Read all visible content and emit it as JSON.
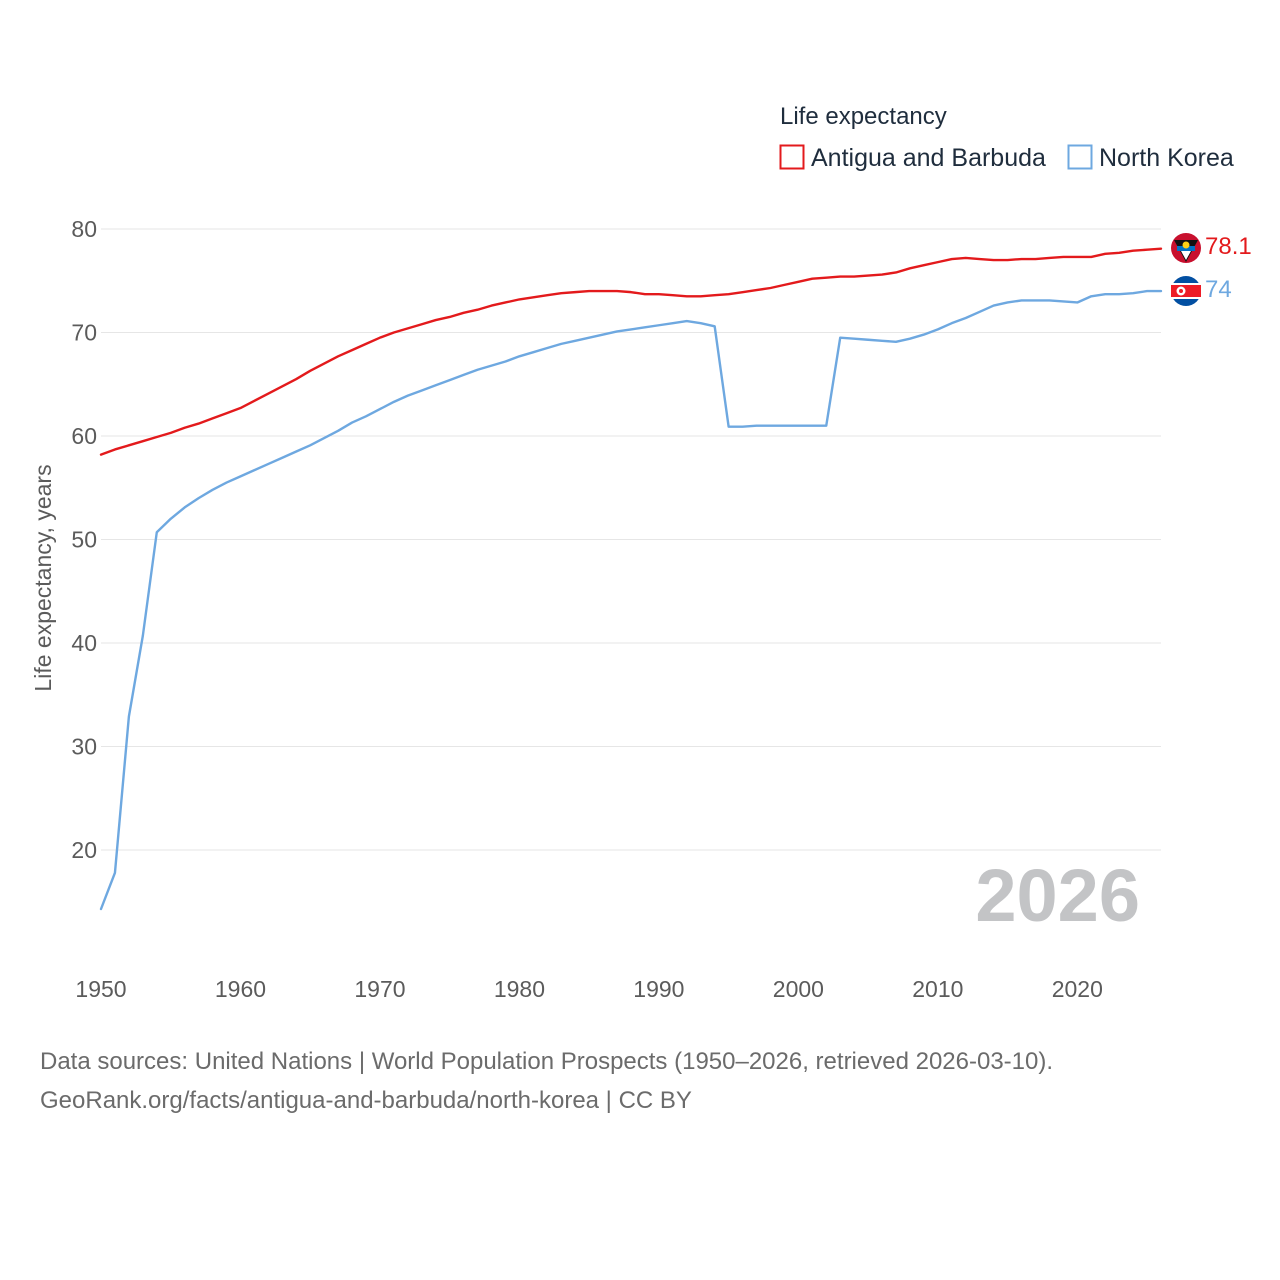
{
  "chart_data": {
    "type": "line",
    "title": "Life expectancy",
    "xlabel": "",
    "ylabel": "Life expectancy, years",
    "xlim": [
      1950,
      2026
    ],
    "ylim": [
      10,
      85
    ],
    "x_ticks": [
      1950,
      1960,
      1970,
      1980,
      1990,
      2000,
      2010,
      2020
    ],
    "y_ticks": [
      20,
      30,
      40,
      50,
      60,
      70,
      80
    ],
    "grid": true,
    "legend_position": "top-right",
    "current_year_label": "2026",
    "series": [
      {
        "name": "Antigua and Barbuda",
        "color": "#e31a1c",
        "flag_icon": "antigua-and-barbuda-flag-icon",
        "end_label": "78.1",
        "x": [
          1950,
          1951,
          1952,
          1953,
          1954,
          1955,
          1956,
          1957,
          1958,
          1959,
          1960,
          1961,
          1962,
          1963,
          1964,
          1965,
          1966,
          1967,
          1968,
          1969,
          1970,
          1971,
          1972,
          1973,
          1974,
          1975,
          1976,
          1977,
          1978,
          1979,
          1980,
          1981,
          1982,
          1983,
          1984,
          1985,
          1986,
          1987,
          1988,
          1989,
          1990,
          1991,
          1992,
          1993,
          1994,
          1995,
          1996,
          1997,
          1998,
          1999,
          2000,
          2001,
          2002,
          2003,
          2004,
          2005,
          2006,
          2007,
          2008,
          2009,
          2010,
          2011,
          2012,
          2013,
          2014,
          2015,
          2016,
          2017,
          2018,
          2019,
          2020,
          2021,
          2022,
          2023,
          2024,
          2025,
          2026
        ],
        "values": [
          58.2,
          58.7,
          59.1,
          59.5,
          59.9,
          60.3,
          60.8,
          61.2,
          61.7,
          62.2,
          62.7,
          63.4,
          64.1,
          64.8,
          65.5,
          66.3,
          67.0,
          67.7,
          68.3,
          68.9,
          69.5,
          70.0,
          70.4,
          70.8,
          71.2,
          71.5,
          71.9,
          72.2,
          72.6,
          72.9,
          73.2,
          73.4,
          73.6,
          73.8,
          73.9,
          74.0,
          74.0,
          74.0,
          73.9,
          73.7,
          73.7,
          73.6,
          73.5,
          73.5,
          73.6,
          73.7,
          73.9,
          74.1,
          74.3,
          74.6,
          74.9,
          75.2,
          75.3,
          75.4,
          75.4,
          75.5,
          75.6,
          75.8,
          76.2,
          76.5,
          76.8,
          77.1,
          77.2,
          77.1,
          77.0,
          77.0,
          77.1,
          77.1,
          77.2,
          77.3,
          77.3,
          77.3,
          77.6,
          77.7,
          77.9,
          78.0,
          78.1
        ]
      },
      {
        "name": "North Korea",
        "color": "#6ea8e0",
        "flag_icon": "north-korea-flag-icon",
        "end_label": "74",
        "x": [
          1950,
          1951,
          1952,
          1953,
          1954,
          1955,
          1956,
          1957,
          1958,
          1959,
          1960,
          1961,
          1962,
          1963,
          1964,
          1965,
          1966,
          1967,
          1968,
          1969,
          1970,
          1971,
          1972,
          1973,
          1974,
          1975,
          1976,
          1977,
          1978,
          1979,
          1980,
          1981,
          1982,
          1983,
          1984,
          1985,
          1986,
          1987,
          1988,
          1989,
          1990,
          1991,
          1992,
          1993,
          1994,
          1995,
          1996,
          1997,
          1998,
          1999,
          2000,
          2001,
          2002,
          2003,
          2004,
          2005,
          2006,
          2007,
          2008,
          2009,
          2010,
          2011,
          2012,
          2013,
          2014,
          2015,
          2016,
          2017,
          2018,
          2019,
          2020,
          2021,
          2022,
          2023,
          2024,
          2025,
          2026
        ],
        "values": [
          14.3,
          17.8,
          32.9,
          40.7,
          50.7,
          52.0,
          53.1,
          54.0,
          54.8,
          55.5,
          56.1,
          56.7,
          57.3,
          57.9,
          58.5,
          59.1,
          59.8,
          60.5,
          61.3,
          61.9,
          62.6,
          63.3,
          63.9,
          64.4,
          64.9,
          65.4,
          65.9,
          66.4,
          66.8,
          67.2,
          67.7,
          68.1,
          68.5,
          68.9,
          69.2,
          69.5,
          69.8,
          70.1,
          70.3,
          70.5,
          70.7,
          70.9,
          71.1,
          70.9,
          70.6,
          60.9,
          60.9,
          61.0,
          61.0,
          61.0,
          61.0,
          61.0,
          61.0,
          69.5,
          69.4,
          69.3,
          69.2,
          69.1,
          69.4,
          69.8,
          70.3,
          70.9,
          71.4,
          72.0,
          72.6,
          72.9,
          73.1,
          73.1,
          73.1,
          73.0,
          72.9,
          73.5,
          73.7,
          73.7,
          73.8,
          74.0,
          74.0
        ]
      }
    ]
  },
  "footer": {
    "line1": "Data sources: United Nations | World Population Prospects (1950–2026, retrieved 2026-03-10).",
    "line2": "GeoRank.org/facts/antigua-and-barbuda/north-korea | CC BY"
  }
}
